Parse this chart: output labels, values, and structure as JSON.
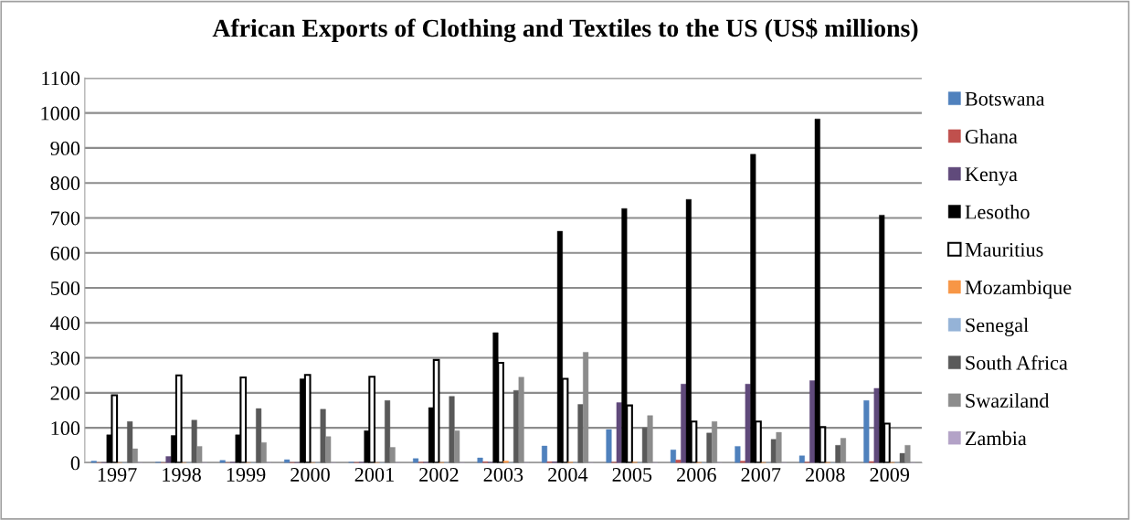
{
  "chart_data": {
    "type": "bar",
    "title": "African Exports of Clothing and Textiles to the US (US$ millions)",
    "categories": [
      "1997",
      "1998",
      "1999",
      "2000",
      "2001",
      "2002",
      "2003",
      "2004",
      "2005",
      "2006",
      "2007",
      "2008",
      "2009"
    ],
    "series": [
      {
        "name": "Botswana",
        "color": "#4f81bd",
        "values": [
          5,
          2,
          7,
          9,
          2,
          12,
          14,
          48,
          95,
          37,
          47,
          20,
          178
        ]
      },
      {
        "name": "Ghana",
        "color": "#c0504d",
        "values": [
          0,
          0,
          0,
          1,
          1,
          2,
          3,
          3,
          2,
          8,
          5,
          2,
          4
        ]
      },
      {
        "name": "Kenya",
        "color": "#604a7b",
        "values": [
          1,
          18,
          2,
          1,
          2,
          2,
          2,
          3,
          172,
          225,
          225,
          235,
          213
        ]
      },
      {
        "name": "Lesotho",
        "color": "#000000",
        "values": [
          80,
          78,
          80,
          240,
          92,
          158,
          372,
          662,
          727,
          753,
          882,
          983,
          708
        ]
      },
      {
        "name": "Mauritius",
        "color": "#ffffff",
        "values": [
          193,
          250,
          244,
          251,
          246,
          294,
          286,
          240,
          164,
          118,
          118,
          102,
          112
        ]
      },
      {
        "name": "Mozambique",
        "color": "#f79646",
        "values": [
          0,
          0,
          0,
          0,
          0,
          1,
          5,
          2,
          2,
          1,
          1,
          1,
          1
        ]
      },
      {
        "name": "Senegal",
        "color": "#95b3d7",
        "values": [
          0,
          0,
          0,
          0,
          0,
          0,
          0,
          0,
          0,
          0,
          0,
          0,
          0
        ]
      },
      {
        "name": "South Africa",
        "color": "#595959",
        "values": [
          118,
          122,
          155,
          153,
          178,
          190,
          207,
          167,
          100,
          85,
          67,
          50,
          27
        ]
      },
      {
        "name": "Swaziland",
        "color": "#8c8c8c",
        "values": [
          40,
          47,
          58,
          75,
          44,
          92,
          245,
          316,
          135,
          118,
          87,
          70,
          50
        ]
      },
      {
        "name": "Zambia",
        "color": "#b3a2c7",
        "values": [
          0,
          0,
          0,
          0,
          0,
          0,
          0,
          0,
          0,
          0,
          0,
          0,
          0
        ]
      }
    ],
    "ylim": [
      0,
      1100
    ],
    "yticks": [
      0,
      100,
      200,
      300,
      400,
      500,
      600,
      700,
      800,
      900,
      1000,
      1100
    ],
    "grid": "y",
    "legend": "right"
  }
}
